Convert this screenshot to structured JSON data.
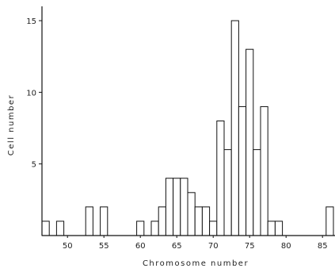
{
  "chart_data": {
    "type": "bar",
    "title": "",
    "xlabel": "Chromosome number",
    "ylabel": "Cell number",
    "x": [
      47,
      49,
      53,
      55,
      60,
      62,
      63,
      64,
      65,
      66,
      67,
      68,
      69,
      70,
      71,
      72,
      73,
      74,
      75,
      76,
      77,
      78,
      79,
      86
    ],
    "values": [
      1,
      1,
      2,
      2,
      1,
      1,
      2,
      4,
      4,
      4,
      3,
      2,
      2,
      1,
      8,
      6,
      15,
      9,
      13,
      6,
      9,
      1,
      1,
      2
    ],
    "bin_width": 1,
    "xlim": [
      46.5,
      86.5
    ],
    "ylim": [
      0,
      16
    ],
    "x_ticks": [
      "50",
      "55",
      "60",
      "65",
      "70",
      "75",
      "80",
      "85"
    ],
    "y_ticks": [
      "5",
      "10",
      "15"
    ],
    "grid": false
  }
}
